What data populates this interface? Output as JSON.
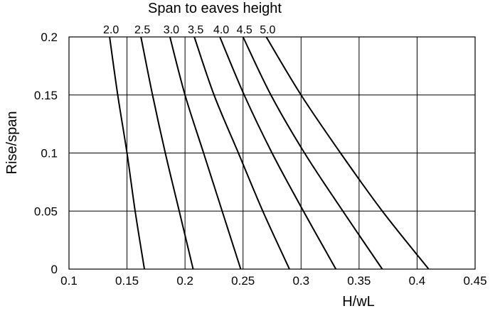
{
  "chart_data": {
    "type": "line",
    "title": "Span to eaves height",
    "xlabel": "H/wL",
    "ylabel": "Rise/span",
    "xlim": [
      0.1,
      0.45
    ],
    "ylim": [
      0,
      0.2
    ],
    "x_ticks": [
      "0.1",
      "0.15",
      "0.2",
      "0.25",
      "0.3",
      "0.35",
      "0.4",
      "0.45"
    ],
    "y_ticks": [
      "0",
      "0.05",
      "0.1",
      "0.15",
      "0.2"
    ],
    "grid": true,
    "series_labels_position": "top",
    "line_color": "#000000",
    "grid_color": "#000000",
    "series": [
      {
        "name": "2.0",
        "points": [
          [
            0.135,
            0.2
          ],
          [
            0.142,
            0.15
          ],
          [
            0.15,
            0.1
          ],
          [
            0.157,
            0.05
          ],
          [
            0.165,
            0.0
          ]
        ]
      },
      {
        "name": "2.5",
        "points": [
          [
            0.162,
            0.2
          ],
          [
            0.172,
            0.15
          ],
          [
            0.183,
            0.1
          ],
          [
            0.195,
            0.05
          ],
          [
            0.207,
            0.0
          ]
        ]
      },
      {
        "name": "3.0",
        "points": [
          [
            0.187,
            0.2
          ],
          [
            0.2,
            0.15
          ],
          [
            0.216,
            0.1
          ],
          [
            0.232,
            0.05
          ],
          [
            0.248,
            0.0
          ]
        ]
      },
      {
        "name": "3.5",
        "points": [
          [
            0.208,
            0.2
          ],
          [
            0.225,
            0.15
          ],
          [
            0.246,
            0.1
          ],
          [
            0.267,
            0.05
          ],
          [
            0.29,
            0.0
          ]
        ]
      },
      {
        "name": "4.0",
        "points": [
          [
            0.23,
            0.2
          ],
          [
            0.251,
            0.15
          ],
          [
            0.275,
            0.1
          ],
          [
            0.302,
            0.05
          ],
          [
            0.33,
            0.0
          ]
        ]
      },
      {
        "name": "4.5",
        "points": [
          [
            0.25,
            0.2
          ],
          [
            0.274,
            0.15
          ],
          [
            0.303,
            0.1
          ],
          [
            0.336,
            0.05
          ],
          [
            0.37,
            0.0
          ]
        ]
      },
      {
        "name": "5.0",
        "points": [
          [
            0.27,
            0.2
          ],
          [
            0.3,
            0.15
          ],
          [
            0.334,
            0.1
          ],
          [
            0.37,
            0.05
          ],
          [
            0.41,
            0.0
          ]
        ]
      }
    ]
  }
}
